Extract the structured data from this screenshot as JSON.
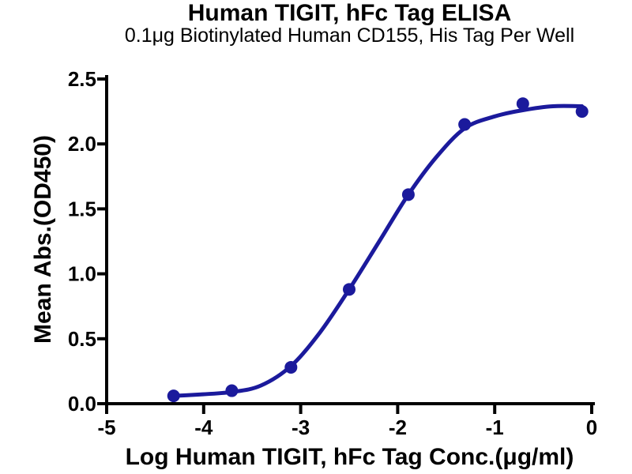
{
  "chart_data": {
    "type": "scatter",
    "title": "Human TIGIT, hFc Tag ELISA",
    "subtitle": "0.1μg Biotinylated Human CD155, His Tag Per Well",
    "xlabel": "Log Human TIGIT, hFc Tag Conc.(μg/ml)",
    "ylabel": "Mean Abs.(OD450)",
    "xlim": [
      -5,
      0
    ],
    "ylim": [
      0,
      2.5
    ],
    "x_ticks": [
      -5,
      -4,
      -3,
      -2,
      -1,
      0
    ],
    "x_tick_labels": [
      "-5",
      "-4",
      "-3",
      "-2",
      "-1",
      "0"
    ],
    "y_ticks": [
      0,
      0.5,
      1,
      1.5,
      2,
      2.5
    ],
    "y_tick_labels": [
      "0.0",
      "0.5",
      "1.0",
      "1.5",
      "2.0",
      "2.5"
    ],
    "grid": false,
    "legend": null,
    "colors": {
      "curve": "#1b1a9c",
      "marker": "#1b1a9c",
      "axis": "#000000",
      "text": "#000000",
      "background": "#ffffff"
    },
    "points": [
      {
        "x": -4.31,
        "y": 0.06
      },
      {
        "x": -3.71,
        "y": 0.1
      },
      {
        "x": -3.1,
        "y": 0.28
      },
      {
        "x": -2.5,
        "y": 0.88
      },
      {
        "x": -1.89,
        "y": 1.61
      },
      {
        "x": -1.31,
        "y": 2.15
      },
      {
        "x": -0.71,
        "y": 2.31
      },
      {
        "x": -0.1,
        "y": 2.25
      }
    ],
    "fit_curve": [
      {
        "x": -4.31,
        "y": 0.06
      },
      {
        "x": -4.06,
        "y": 0.07
      },
      {
        "x": -3.71,
        "y": 0.09
      },
      {
        "x": -3.41,
        "y": 0.14
      },
      {
        "x": -3.1,
        "y": 0.29
      },
      {
        "x": -2.8,
        "y": 0.55
      },
      {
        "x": -2.5,
        "y": 0.88
      },
      {
        "x": -2.19,
        "y": 1.25
      },
      {
        "x": -1.89,
        "y": 1.61
      },
      {
        "x": -1.6,
        "y": 1.9
      },
      {
        "x": -1.31,
        "y": 2.12
      },
      {
        "x": -1.01,
        "y": 2.21
      },
      {
        "x": -0.71,
        "y": 2.26
      },
      {
        "x": -0.4,
        "y": 2.29
      },
      {
        "x": -0.1,
        "y": 2.29
      }
    ]
  }
}
